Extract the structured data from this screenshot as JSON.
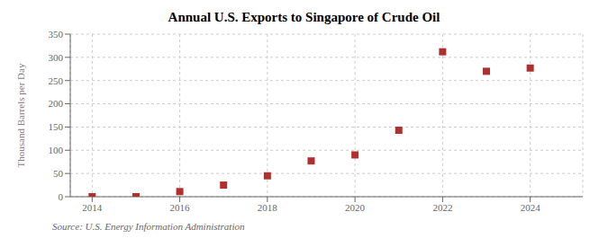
{
  "chart_data": {
    "type": "scatter",
    "title": "Annual U.S. Exports to Singapore of Crude Oil",
    "ylabel": "Thousand Barrels per Day",
    "source": "Source: U.S. Energy Information Administration",
    "x": [
      2014,
      2015,
      2016,
      2017,
      2018,
      2019,
      2020,
      2021,
      2022,
      2023,
      2024
    ],
    "values": [
      0,
      0,
      11,
      25,
      45,
      77,
      90,
      143,
      312,
      270,
      277
    ],
    "xlim": [
      2013.5,
      2025.2
    ],
    "ylim": [
      0,
      350
    ],
    "xticks": [
      2014,
      2016,
      2018,
      2020,
      2022,
      2024
    ],
    "yticks": [
      0,
      50,
      100,
      150,
      200,
      250,
      300,
      350
    ],
    "color": "#b03030",
    "marker": "square",
    "grid": true
  }
}
